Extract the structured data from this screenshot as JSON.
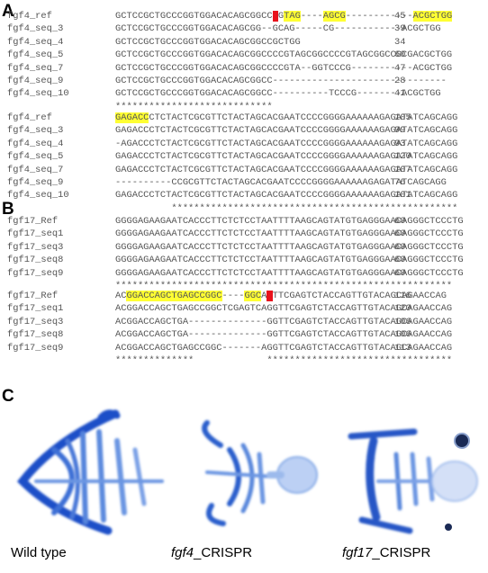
{
  "panels": [
    {
      "label": "A",
      "blocks": [
        {
          "rows": [
            {
              "name": "fgf4_ref",
              "segments": [
                {
                  "text": "GCTCCGCTGCCCGGTGGACACAGCGGCC"
                },
                {
                  "text": "G",
                  "highlight": "red"
                },
                {
                  "text": "G"
                },
                {
                  "text": "TAG",
                  "highlight": "yellow"
                },
                {
                  "text": "----"
                },
                {
                  "text": "AGCG",
                  "highlight": "yellow"
                },
                {
                  "text": "------------"
                },
                {
                  "text": "ACGCTGG",
                  "highlight": "yellow"
                }
              ],
              "count": "45"
            },
            {
              "name": "fgf4_seq_3",
              "segments": [
                {
                  "text": "GCTCCGCTGCCCGGTGGACACAGCGG--GCAG-----CG------------ACGCTGG"
                }
              ],
              "count": "39"
            },
            {
              "name": "fgf4_seq_4",
              "segments": [
                {
                  "text": "GCTCCGCTGCCCGGTGGACACAGCGGCCGCTGG"
                }
              ],
              "count": "34"
            },
            {
              "name": "fgf4_seq_5",
              "segments": [
                {
                  "text": "GCTCCGCTGCCCGGTGGACACAGCGGCCCCGTAGCGGCCCCGTAGCGGCCGCGACGCTGG"
                }
              ],
              "count": "60"
            },
            {
              "name": "fgf4_seq_7",
              "segments": [
                {
                  "text": "GCTCCGCTGCCCGGTGGACACAGCGGCCCCGTA--GGTCCCG-----------ACGCTGG"
                }
              ],
              "count": "47"
            },
            {
              "name": "fgf4_seq_9",
              "segments": [
                {
                  "text": "GCTCCGCTGCCCGGTGGACACAGCGGCC-------------------------------"
                }
              ],
              "count": "28"
            },
            {
              "name": "fgf4_seq_10",
              "segments": [
                {
                  "text": "GCTCCGCTGCCCGGTGGACACAGCGGCC----------TCCCG--------ACGCTGG"
                }
              ],
              "count": "41"
            }
          ],
          "consensus": "****************************"
        },
        {
          "rows": [
            {
              "name": "fgf4_ref",
              "segments": [
                {
                  "text": "GAGACC",
                  "highlight": "yellow"
                },
                {
                  "text": "CTCTACTCGCGTTCTACTAGCACGAATCCCCGGGGAAAAAAGAGATATCAGCAGG"
                }
              ],
              "count": "105"
            },
            {
              "name": "fgf4_seq_3",
              "segments": [
                {
                  "text": "GAGACCCTCTACTCGCGTTCTACTAGCACGAATCCCCGGGGAAAAAAGAGATATCAGCAGG"
                }
              ],
              "count": "99"
            },
            {
              "name": "fgf4_seq_4",
              "segments": [
                {
                  "text": "-AGACCCTCTACTCGCGTTCTACTAGCACGAATCCCCGGGGAAAAAAGAGATATCAGCAGG"
                }
              ],
              "count": "93"
            },
            {
              "name": "fgf4_seq_5",
              "segments": [
                {
                  "text": "GAGACCCTCTACTCGCGTTCTACTAGCACGAATCCCCGGGGAAAAAAGAGATATCAGCAGG"
                }
              ],
              "count": "120"
            },
            {
              "name": "fgf4_seq_7",
              "segments": [
                {
                  "text": "GAGACCCTCTACTCGCGTTCTACTAGCACGAATCCCCGGGGAAAAAAGAGATATCAGCAGG"
                }
              ],
              "count": "107"
            },
            {
              "name": "fgf4_seq_9",
              "segments": [
                {
                  "text": "----------CCGCGTTCTACTAGCACGAATCCCCGGGGAAAAAAGAGATATCAGCAGG"
                }
              ],
              "count": "76"
            },
            {
              "name": "fgf4_seq_10",
              "segments": [
                {
                  "text": "GAGACCCTCTACTCGCGTTCTACTAGCACGAATCCCCGGGGAAAAAAGAGATATCAGCAGG"
                }
              ],
              "count": "101"
            }
          ],
          "consensus": "          ***************************************************"
        }
      ]
    },
    {
      "label": "B",
      "blocks": [
        {
          "rows": [
            {
              "name": "fgf17_Ref",
              "segments": [
                {
                  "text": "GGGGAGAAGAATCACCCTTCTCTCCTAATTTTAAGCAGTATGTGAGGGAACAGGGCTCCCTG"
                }
              ],
              "count": "60"
            },
            {
              "name": "fgf17_seq1",
              "segments": [
                {
                  "text": "GGGGAGAAGAATCACCCTTCTCTCCTAATTTTAAGCAGTATGTGAGGGAACAGGGCTCCCTG"
                }
              ],
              "count": "60"
            },
            {
              "name": "fgf17_seq3",
              "segments": [
                {
                  "text": "GGGGAGAAGAATCACCCTTCTCTCCTAATTTTAAGCAGTATGTGAGGGAACAGGGCTCCCTG"
                }
              ],
              "count": "60"
            },
            {
              "name": "fgf17_seq8",
              "segments": [
                {
                  "text": "GGGGAGAAGAATCACCCTTCTCTCCTAATTTTAAGCAGTATGTGAGGGAACAGGGCTCCCTG"
                }
              ],
              "count": "60"
            },
            {
              "name": "fgf17_seq9",
              "segments": [
                {
                  "text": "GGGGAGAAGAATCACCCTTCTCTCCTAATTTTAAGCAGTATGTGAGGGAACAGGGCTCCCTG"
                }
              ],
              "count": "60"
            }
          ],
          "consensus": "************************************************************"
        },
        {
          "rows": [
            {
              "name": "fgf17_Ref",
              "segments": [
                {
                  "text": "AC"
                },
                {
                  "text": "GGACCAGCTGAGCCGGC",
                  "highlight": "yellow"
                },
                {
                  "text": "----"
                },
                {
                  "text": "GGC",
                  "highlight": "yellow"
                },
                {
                  "text": "A"
                },
                {
                  "text": "G",
                  "highlight": "red"
                },
                {
                  "text": "TTCGAGTCTACCAGTTGTACAGCAGAACCAG"
                }
              ],
              "count": "116"
            },
            {
              "name": "fgf17_seq1",
              "segments": [
                {
                  "text": "ACGGACCAGCTGAGCCGGCTCGAGTCAGGTTCGAGTCTACCAGTTGTACAGCAGAACCAG"
                }
              ],
              "count": "120"
            },
            {
              "name": "fgf17_seq3",
              "segments": [
                {
                  "text": "ACGGACCAGCTGA--------------GGTTCGAGTCTACCAGTTGTACAGCAGAACCAG"
                }
              ],
              "count": "106"
            },
            {
              "name": "fgf17_seq8",
              "segments": [
                {
                  "text": "ACGGACCAGCTGA--------------GGTTCGAGTCTACCAGTTGTACAGCAGAACCAG"
                }
              ],
              "count": "106"
            },
            {
              "name": "fgf17_seq9",
              "segments": [
                {
                  "text": "ACGGACCAGCTGAGCCGGC-------AGGTTCGAGTCTACCAGTTGTACAGCAGAACCAG"
                }
              ],
              "count": "113"
            }
          ],
          "consensus": "**************             *********************************"
        }
      ]
    }
  ],
  "panel_c": {
    "label": "C",
    "captions": [
      [
        {
          "text": "Wild type"
        }
      ],
      [
        {
          "text": "fgf4",
          "italic": true
        },
        {
          "text": "_CRISPR"
        }
      ],
      [
        {
          "text": "fgf17",
          "italic": true
        },
        {
          "text": "_CRISPR"
        }
      ]
    ]
  }
}
